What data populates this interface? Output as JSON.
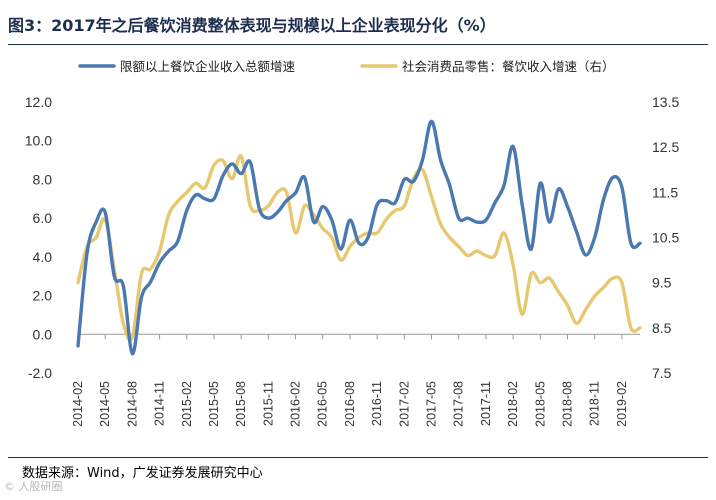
{
  "header": {
    "title": "图3：2017年之后餐饮消费整体表现与规模以上企业表现分化（%）"
  },
  "footer": {
    "source": "数据来源：Wind，广发证券发展研究中心",
    "watermark": "© 人股研圈"
  },
  "chart_data": {
    "type": "line",
    "title": "2017年之后餐饮消费整体表现与规模以上企业表现分化（%）",
    "xlabel": "",
    "ylabel_left": "",
    "ylabel_right": "",
    "x_tick_labels": [
      "2014-02",
      "2014-05",
      "2014-08",
      "2014-11",
      "2015-02",
      "2015-05",
      "2015-08",
      "2015-11",
      "2016-02",
      "2016-05",
      "2016-08",
      "2016-11",
      "2017-02",
      "2017-05",
      "2017-08",
      "2017-11",
      "2018-02",
      "2018-05",
      "2018-08",
      "2018-11",
      "2019-02"
    ],
    "y_left": {
      "min": -2.0,
      "max": 12.0,
      "ticks": [
        "-2.0",
        "0.0",
        "2.0",
        "4.0",
        "6.0",
        "8.0",
        "10.0",
        "12.0"
      ]
    },
    "y_right": {
      "min": 7.5,
      "max": 13.5,
      "ticks": [
        "7.5",
        "8.5",
        "9.5",
        "10.5",
        "11.5",
        "12.5",
        "13.5"
      ]
    },
    "legend_position": "top",
    "series": [
      {
        "name": "限额以上餐饮企业收入总额增速",
        "axis": "left",
        "color": "#4a78b0",
        "x": [
          0,
          1,
          2,
          3,
          4,
          5,
          6,
          7,
          8,
          9,
          10,
          11,
          12,
          13,
          14,
          15,
          16,
          17,
          18,
          19,
          20,
          21,
          22,
          23,
          24,
          25,
          26,
          27,
          28,
          29,
          30,
          31,
          32,
          33,
          34,
          35,
          36,
          37,
          38,
          39,
          40,
          41,
          42,
          43,
          44,
          45,
          46,
          47,
          48,
          49,
          50,
          51,
          52,
          53,
          54,
          55,
          56,
          57,
          58,
          59,
          60,
          61,
          62
        ],
        "values": [
          -0.6,
          4.2,
          5.8,
          6.3,
          3.0,
          2.5,
          -1.0,
          1.9,
          2.7,
          3.7,
          4.3,
          4.8,
          6.4,
          7.2,
          7.0,
          7.0,
          8.2,
          8.8,
          8.3,
          8.9,
          6.5,
          6.0,
          6.3,
          6.9,
          7.3,
          8.1,
          5.8,
          6.6,
          5.9,
          4.4,
          5.9,
          4.7,
          5.0,
          6.7,
          6.9,
          6.8,
          8.0,
          7.9,
          9.0,
          11.0,
          9.0,
          7.7,
          6.0,
          6.0,
          5.8,
          5.9,
          6.8,
          7.7,
          9.7,
          6.7,
          4.4,
          7.8,
          5.8,
          7.5,
          6.6,
          5.3,
          4.1,
          5.0,
          7.0,
          8.1,
          7.6,
          4.7,
          4.7
        ]
      },
      {
        "name": "社会消费品零售：餐饮收入增速（右）",
        "axis": "right",
        "color": "#e6c870",
        "x": [
          0,
          1,
          2,
          3,
          4,
          5,
          6,
          7,
          8,
          9,
          10,
          11,
          12,
          13,
          14,
          15,
          16,
          17,
          18,
          19,
          20,
          21,
          22,
          23,
          24,
          25,
          26,
          27,
          28,
          29,
          30,
          31,
          32,
          33,
          34,
          35,
          36,
          37,
          38,
          39,
          40,
          41,
          42,
          43,
          44,
          45,
          46,
          47,
          48,
          49,
          50,
          51,
          52,
          53,
          54,
          55,
          56,
          57,
          58,
          59,
          60,
          61,
          62
        ],
        "values": [
          9.5,
          10.3,
          10.5,
          10.9,
          9.8,
          8.6,
          8.3,
          9.7,
          9.8,
          10.2,
          11.0,
          11.3,
          11.5,
          11.7,
          11.6,
          12.1,
          12.2,
          11.8,
          12.3,
          11.2,
          11.1,
          11.2,
          11.5,
          11.5,
          10.6,
          11.2,
          11.0,
          10.7,
          10.5,
          10.0,
          10.3,
          10.5,
          10.6,
          10.6,
          10.9,
          11.1,
          11.2,
          11.8,
          12.0,
          11.4,
          10.8,
          10.5,
          10.3,
          10.1,
          10.2,
          10.1,
          10.1,
          10.6,
          9.9,
          8.8,
          9.7,
          9.5,
          9.6,
          9.3,
          9.0,
          8.6,
          8.9,
          9.2,
          9.4,
          9.6,
          9.5,
          8.5,
          8.5
        ]
      }
    ]
  }
}
